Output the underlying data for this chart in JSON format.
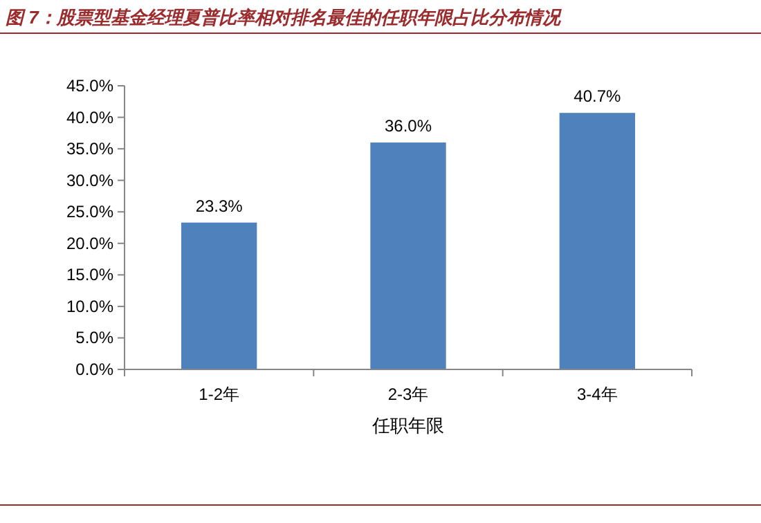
{
  "chart_data": {
    "type": "bar",
    "title": "图 7：股票型基金经理夏普比率相对排名最佳的任职年限占比分布情况",
    "xlabel": "任职年限",
    "categories": [
      "1-2年",
      "2-3年",
      "3-4年"
    ],
    "values": [
      23.3,
      36.0,
      40.7
    ],
    "value_labels": [
      "23.3%",
      "36.0%",
      "40.7%"
    ],
    "color": "#4f81bd",
    "ylim": [
      0,
      45
    ],
    "yticks": [
      {
        "value": 0,
        "label": "0.0%"
      },
      {
        "value": 5,
        "label": "5.0%"
      },
      {
        "value": 10,
        "label": "10.0%"
      },
      {
        "value": 15,
        "label": "15.0%"
      },
      {
        "value": 20,
        "label": "20.0%"
      },
      {
        "value": 25,
        "label": "25.0%"
      },
      {
        "value": 30,
        "label": "30.0%"
      },
      {
        "value": 35,
        "label": "35.0%"
      },
      {
        "value": 40,
        "label": "40.0%"
      },
      {
        "value": 45,
        "label": "45.0%"
      }
    ],
    "grid": false
  }
}
